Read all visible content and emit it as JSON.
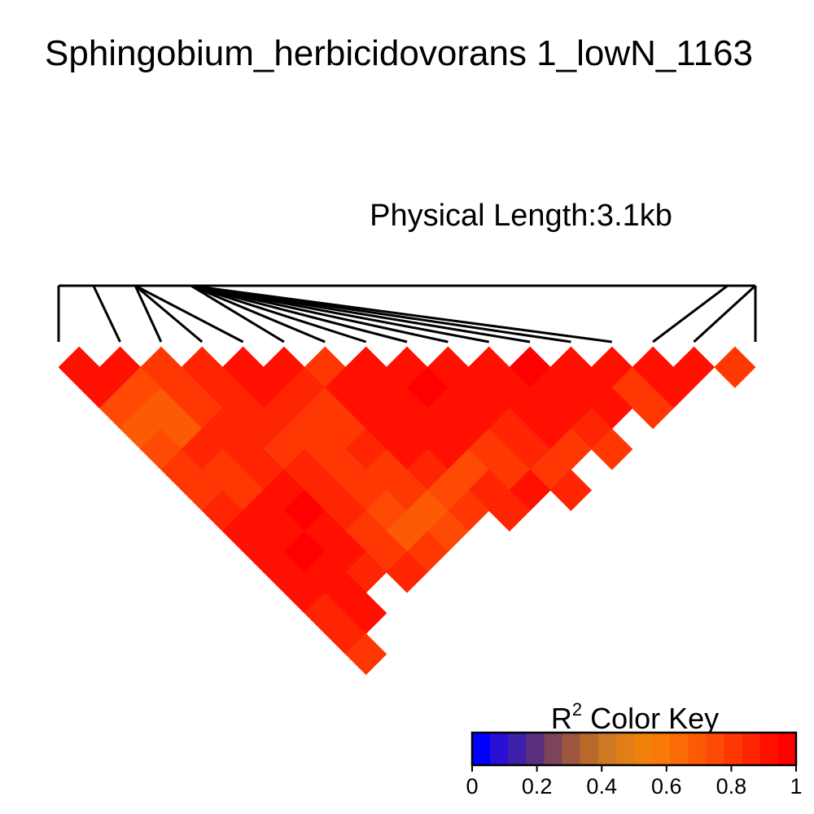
{
  "chart_data": {
    "type": "heatmap",
    "title": "Sphingobium_herbicidovorans 1_lowN_1163",
    "subtitle": "Physical Length:3.1kb",
    "n_snps": 17,
    "snp_positions": [
      0,
      0.05,
      0.11,
      0.11,
      0.11,
      0.19,
      0.19,
      0.19,
      0.19,
      0.19,
      0.19,
      0.19,
      0.19,
      0.19,
      0.96,
      1.0,
      1.0
    ],
    "r2_rows": [
      [
        0.95,
        0.95,
        0.85,
        0.88,
        0.96,
        0.96,
        0.83,
        0.97,
        0.96,
        0.97,
        0.97,
        0.98,
        0.97,
        0.95,
        0.95,
        0.97,
        0.8
      ],
      [
        0.97,
        0.78,
        0.83,
        0.9,
        0.97,
        0.88,
        0.92,
        0.97,
        0.98,
        0.97,
        0.97,
        0.95,
        0.93,
        0.85,
        0.93
      ],
      [
        0.75,
        0.73,
        0.82,
        0.9,
        0.87,
        0.83,
        0.92,
        0.97,
        0.97,
        0.97,
        0.95,
        0.95,
        0.95,
        0.85
      ],
      [
        0.72,
        0.73,
        0.9,
        0.87,
        0.8,
        0.85,
        0.93,
        0.97,
        0.97,
        0.88,
        0.95,
        0.9
      ],
      [
        0.75,
        0.88,
        0.88,
        0.85,
        0.83,
        0.88,
        0.93,
        0.93,
        0.83,
        0.88,
        0.85,
        0.83
      ],
      [
        0.8,
        0.85,
        0.88,
        0.87,
        0.82,
        0.85,
        0.9,
        0.78,
        0.82,
        0.85
      ],
      [
        0.85,
        0.85,
        0.95,
        0.9,
        0.8,
        0.8,
        0.75,
        0.88,
        0.93,
        0.9
      ],
      [
        0.9,
        0.93,
        0.98,
        0.87,
        0.78,
        0.68,
        0.85,
        0.9
      ],
      [
        0.92,
        0.95,
        0.97,
        0.85,
        0.72,
        0.75
      ],
      [
        0.93,
        0.98,
        0.92,
        0.8,
        0.83
      ],
      [
        0.97,
        0.95,
        0.88,
        0.9
      ],
      [
        0.93,
        0.92
      ],
      [
        0.9,
        0.95
      ],
      [
        0.88
      ],
      [
        0.85
      ]
    ],
    "color_key": {
      "title": "R",
      "title_superscript": "2",
      "title_suffix": " Color Key",
      "ticks": [
        "0",
        "0.2",
        "0.4",
        "0.6",
        "0.8",
        "1"
      ],
      "colors": [
        "#0000ff",
        "#2a10d4",
        "#3e1fa9",
        "#5a307e",
        "#7c4459",
        "#9d5740",
        "#b8692a",
        "#cd7822",
        "#e07e18",
        "#f0820c",
        "#f87a08",
        "#fc6a06",
        "#fd5a05",
        "#fe4a04",
        "#ff3803",
        "#ff2502",
        "#ff1001",
        "#ff0000"
      ]
    }
  }
}
